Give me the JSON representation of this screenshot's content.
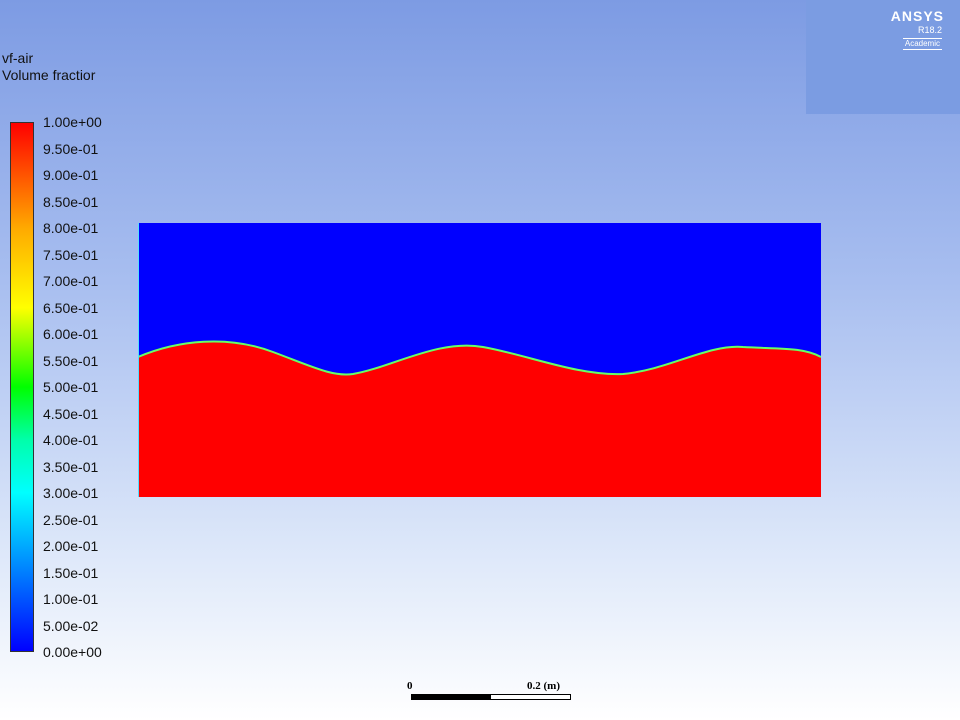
{
  "legend": {
    "title_line1": "vf-air",
    "title_line2": "Volume fractior",
    "labels": [
      "1.00e+00",
      "9.50e-01",
      "9.00e-01",
      "8.50e-01",
      "8.00e-01",
      "7.50e-01",
      "7.00e-01",
      "6.50e-01",
      "6.00e-01",
      "5.50e-01",
      "5.00e-01",
      "4.50e-01",
      "4.00e-01",
      "3.50e-01",
      "3.00e-01",
      "2.50e-01",
      "2.00e-01",
      "1.50e-01",
      "1.00e-01",
      "5.00e-02",
      "0.00e+00"
    ],
    "colormap": [
      "#ff0000",
      "#ffaa00",
      "#ffff00",
      "#00ff00",
      "#00ffff",
      "#0055ff",
      "#0000ff"
    ]
  },
  "logo": {
    "name": "ANSYS",
    "version": "R18.2",
    "edition": "Academic"
  },
  "contour": {
    "air_color": "#0000ff",
    "water_color": "#ff0000",
    "interface_color": "#66ff66"
  },
  "scale_bar": {
    "zero_label": "0",
    "max_label": "0.2 (m)"
  }
}
